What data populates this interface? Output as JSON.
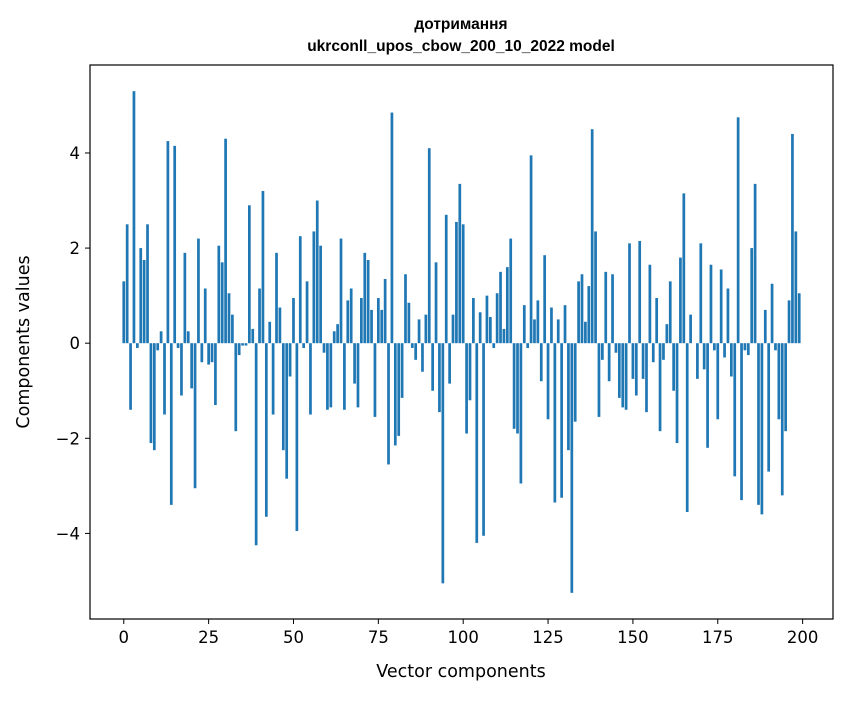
{
  "chart_data": {
    "type": "bar",
    "title": "дотримання",
    "subtitle": "ukrconll_upos_cbow_200_10_2022 model",
    "xlabel": "Vector components",
    "ylabel": "Components values",
    "xlim": [
      -9.95,
      208.95
    ],
    "ylim": [
      -5.8,
      5.85
    ],
    "xticks": [
      0,
      25,
      50,
      75,
      100,
      125,
      150,
      175,
      200
    ],
    "xtick_labels": [
      "0",
      "25",
      "50",
      "75",
      "100",
      "125",
      "150",
      "175",
      "200"
    ],
    "yticks": [
      -4,
      -2,
      0,
      2,
      4
    ],
    "ytick_labels": [
      "−4",
      "−2",
      "0",
      "2",
      "4"
    ],
    "grid": false,
    "legend": "none",
    "bar_color": "#1f77b4",
    "x": [
      0,
      1,
      2,
      3,
      4,
      5,
      6,
      7,
      8,
      9,
      10,
      11,
      12,
      13,
      14,
      15,
      16,
      17,
      18,
      19,
      20,
      21,
      22,
      23,
      24,
      25,
      26,
      27,
      28,
      29,
      30,
      31,
      32,
      33,
      34,
      35,
      36,
      37,
      38,
      39,
      40,
      41,
      42,
      43,
      44,
      45,
      46,
      47,
      48,
      49,
      50,
      51,
      52,
      53,
      54,
      55,
      56,
      57,
      58,
      59,
      60,
      61,
      62,
      63,
      64,
      65,
      66,
      67,
      68,
      69,
      70,
      71,
      72,
      73,
      74,
      75,
      76,
      77,
      78,
      79,
      80,
      81,
      82,
      83,
      84,
      85,
      86,
      87,
      88,
      89,
      90,
      91,
      92,
      93,
      94,
      95,
      96,
      97,
      98,
      99,
      100,
      101,
      102,
      103,
      104,
      105,
      106,
      107,
      108,
      109,
      110,
      111,
      112,
      113,
      114,
      115,
      116,
      117,
      118,
      119,
      120,
      121,
      122,
      123,
      124,
      125,
      126,
      127,
      128,
      129,
      130,
      131,
      132,
      133,
      134,
      135,
      136,
      137,
      138,
      139,
      140,
      141,
      142,
      143,
      144,
      145,
      146,
      147,
      148,
      149,
      150,
      151,
      152,
      153,
      154,
      155,
      156,
      157,
      158,
      159,
      160,
      161,
      162,
      163,
      164,
      165,
      166,
      167,
      168,
      169,
      170,
      171,
      172,
      173,
      174,
      175,
      176,
      177,
      178,
      179,
      180,
      181,
      182,
      183,
      184,
      185,
      186,
      187,
      188,
      189,
      190,
      191,
      192,
      193,
      194,
      195,
      196,
      197,
      198,
      199
    ],
    "values": [
      1.3,
      2.5,
      -1.4,
      5.3,
      -0.1,
      2.0,
      1.75,
      2.5,
      -2.1,
      -2.25,
      -0.15,
      0.25,
      -1.5,
      4.25,
      -3.4,
      4.15,
      -0.1,
      -1.1,
      1.9,
      0.25,
      -0.95,
      -3.05,
      2.2,
      -0.4,
      1.15,
      -0.45,
      -0.4,
      -1.3,
      2.05,
      1.7,
      4.3,
      1.05,
      0.6,
      -1.85,
      -0.25,
      -0.05,
      -0.05,
      2.9,
      0.3,
      -4.25,
      1.15,
      3.2,
      -3.65,
      0.45,
      -1.5,
      1.9,
      0.75,
      -2.25,
      -2.85,
      -0.7,
      0.95,
      -3.95,
      2.25,
      -0.1,
      1.3,
      -1.5,
      2.35,
      3.0,
      2.05,
      -0.2,
      -1.4,
      -1.35,
      0.25,
      0.4,
      2.2,
      -1.4,
      0.9,
      1.15,
      -0.85,
      -1.35,
      0.95,
      1.9,
      1.75,
      0.7,
      -1.55,
      0.95,
      0.7,
      1.35,
      -2.55,
      4.85,
      -2.15,
      -1.95,
      -1.15,
      1.45,
      0.85,
      -0.1,
      -0.35,
      0.5,
      -0.6,
      0.6,
      4.1,
      -1.0,
      1.7,
      -1.45,
      -5.05,
      2.7,
      -0.85,
      0.6,
      2.55,
      3.35,
      2.5,
      -1.9,
      -1.2,
      0.95,
      -4.2,
      0.65,
      -4.05,
      1.0,
      0.55,
      -0.1,
      1.05,
      1.5,
      0.3,
      1.6,
      2.2,
      -1.8,
      -1.9,
      -2.95,
      0.8,
      -0.1,
      3.95,
      0.5,
      0.9,
      -0.8,
      1.85,
      -1.6,
      0.75,
      -3.35,
      0.5,
      -3.25,
      0.8,
      -2.25,
      -5.25,
      -1.65,
      1.3,
      1.45,
      0.45,
      1.2,
      4.5,
      2.35,
      -1.55,
      -0.35,
      1.5,
      -0.8,
      1.45,
      -0.2,
      -1.15,
      -1.35,
      -1.4,
      2.1,
      -0.75,
      -1.1,
      2.15,
      -0.75,
      -1.45,
      1.65,
      -0.4,
      0.95,
      -1.85,
      -0.35,
      0.4,
      1.3,
      -1.0,
      -2.1,
      1.8,
      3.15,
      -3.55,
      0.6,
      0.0,
      -0.75,
      2.1,
      -0.55,
      -2.2,
      1.65,
      -0.15,
      -1.6,
      1.55,
      -0.3,
      1.15,
      -0.7,
      -2.8,
      4.75,
      -3.3,
      -0.15,
      -0.25,
      2.0,
      3.35,
      -3.4,
      -3.6,
      0.7,
      -2.7,
      1.25,
      -0.15,
      -1.6,
      -3.2,
      -1.85,
      0.9,
      4.4,
      2.35,
      1.05
    ]
  }
}
